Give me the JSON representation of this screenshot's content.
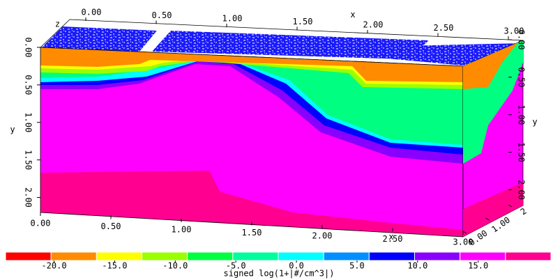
{
  "chart_data": {
    "type": "contour",
    "xlabel": "x",
    "ylabel": "y",
    "zlabel": "z",
    "xlim": [
      0,
      3
    ],
    "ylim": [
      0,
      2.2
    ],
    "zlim": [
      0,
      2
    ],
    "xticks": [
      {
        "value": 0,
        "label": "0.00"
      },
      {
        "value": 0.5,
        "label": "0.50"
      },
      {
        "value": 1,
        "label": "1.00"
      },
      {
        "value": 1.5,
        "label": "1.50"
      },
      {
        "value": 2,
        "label": "2.00"
      },
      {
        "value": 2.5,
        "label": "2.50"
      },
      {
        "value": 3,
        "label": "3.00"
      }
    ],
    "yticks": [
      {
        "value": 0,
        "label": "0.00"
      },
      {
        "value": 0.5,
        "label": "0.50"
      },
      {
        "value": 1,
        "label": "1.00"
      },
      {
        "value": 1.5,
        "label": "1.50"
      },
      {
        "value": 2,
        "label": "2.00"
      }
    ],
    "zticks": [
      {
        "value": 0,
        "label": "0.00"
      },
      {
        "value": 1,
        "label": "1.00"
      },
      {
        "value": 2,
        "label": "2"
      }
    ],
    "colorbar": {
      "label": "signed log(1+|#/cm^3|)",
      "clim": [
        -24,
        21
      ],
      "colors": [
        "#ff0000",
        "#ff8c00",
        "#ffff00",
        "#9aff00",
        "#00ff40",
        "#00ff9c",
        "#00ffff",
        "#0090ff",
        "#0000ff",
        "#8a00ff",
        "#ff00ff",
        "#ff0090"
      ],
      "ticks": [
        {
          "value": -20,
          "label": "-20.0"
        },
        {
          "value": -15,
          "label": "-15.0"
        },
        {
          "value": -10,
          "label": "-10.0"
        },
        {
          "value": -5,
          "label": "-5.0"
        },
        {
          "value": 0,
          "label": "0.0"
        },
        {
          "value": 5,
          "label": "5.0"
        },
        {
          "value": 10,
          "label": "10.0"
        },
        {
          "value": 15,
          "label": "15.0"
        }
      ]
    }
  }
}
